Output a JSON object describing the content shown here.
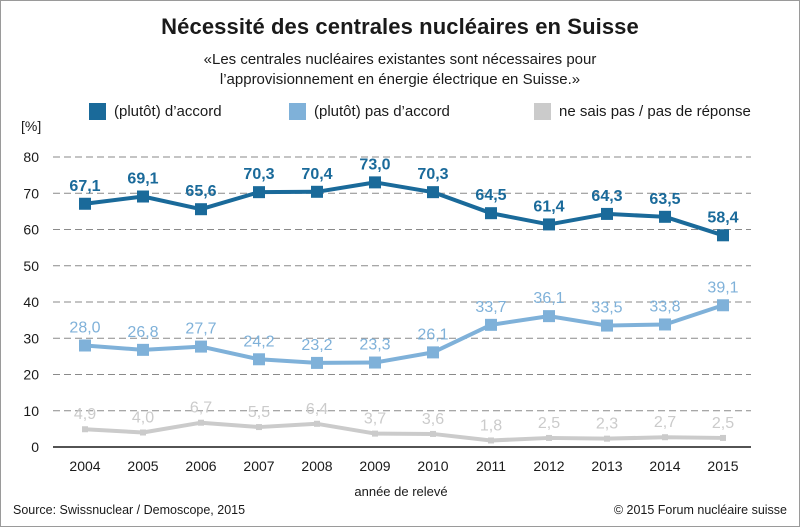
{
  "title": "Nécessité des centrales nucléaires en Suisse",
  "subtitle": "«Les centrales nucléaires existantes sont nécessaires pour\nl’approvisionnement en énergie électrique en Suisse.»",
  "unit_label": "[%]",
  "source": "Source: Swissnuclear / Demoscope, 2015",
  "copyright": "© 2015 Forum nucléaire suisse",
  "colors": {
    "accord": "#1a6a9a",
    "pas_accord": "#7fb1d9",
    "ne_sais_pas": "#cbcbcb"
  },
  "chart_data": {
    "type": "line",
    "title": "Nécessité des centrales nucléaires en Suisse",
    "xlabel": "année de relevé",
    "ylabel": "[%]",
    "ylim": [
      0,
      80
    ],
    "yticks": [
      0,
      10,
      20,
      30,
      40,
      50,
      60,
      70,
      80
    ],
    "grid": true,
    "legend_position": "top",
    "x": [
      "2004",
      "2005",
      "2006",
      "2007",
      "2008",
      "2009",
      "2010",
      "2011",
      "2012",
      "2013",
      "2014",
      "2015"
    ],
    "series": [
      {
        "name": "(plutôt) d’accord",
        "color": "#1a6a9a",
        "marker": true,
        "values": [
          67.1,
          69.1,
          65.6,
          70.3,
          70.4,
          73.0,
          70.3,
          64.5,
          61.4,
          64.3,
          63.5,
          58.4
        ],
        "labels": [
          "67,1",
          "69,1",
          "65,6",
          "70,3",
          "70,4",
          "73,0",
          "70,3",
          "64,5",
          "61,4",
          "64,3",
          "63,5",
          "58,4"
        ]
      },
      {
        "name": "(plutôt) pas d’accord",
        "color": "#7fb1d9",
        "marker": true,
        "values": [
          28.0,
          26.8,
          27.7,
          24.2,
          23.2,
          23.3,
          26.1,
          33.7,
          36.1,
          33.5,
          33.8,
          39.1
        ],
        "labels": [
          "28,0",
          "26,8",
          "27,7",
          "24,2",
          "23,2",
          "23,3",
          "26,1",
          "33,7",
          "36,1",
          "33,5",
          "33,8",
          "39,1"
        ]
      },
      {
        "name": "ne sais pas / pas de réponse",
        "color": "#cbcbcb",
        "marker": false,
        "values": [
          4.9,
          4.0,
          6.7,
          5.5,
          6.4,
          3.7,
          3.6,
          1.8,
          2.5,
          2.3,
          2.7,
          2.5
        ],
        "labels": [
          "4,9",
          "4,0",
          "6,7",
          "5,5",
          "6,4",
          "3,7",
          "3,6",
          "1,8",
          "2,5",
          "2,3",
          "2,7",
          "2,5"
        ]
      }
    ]
  }
}
